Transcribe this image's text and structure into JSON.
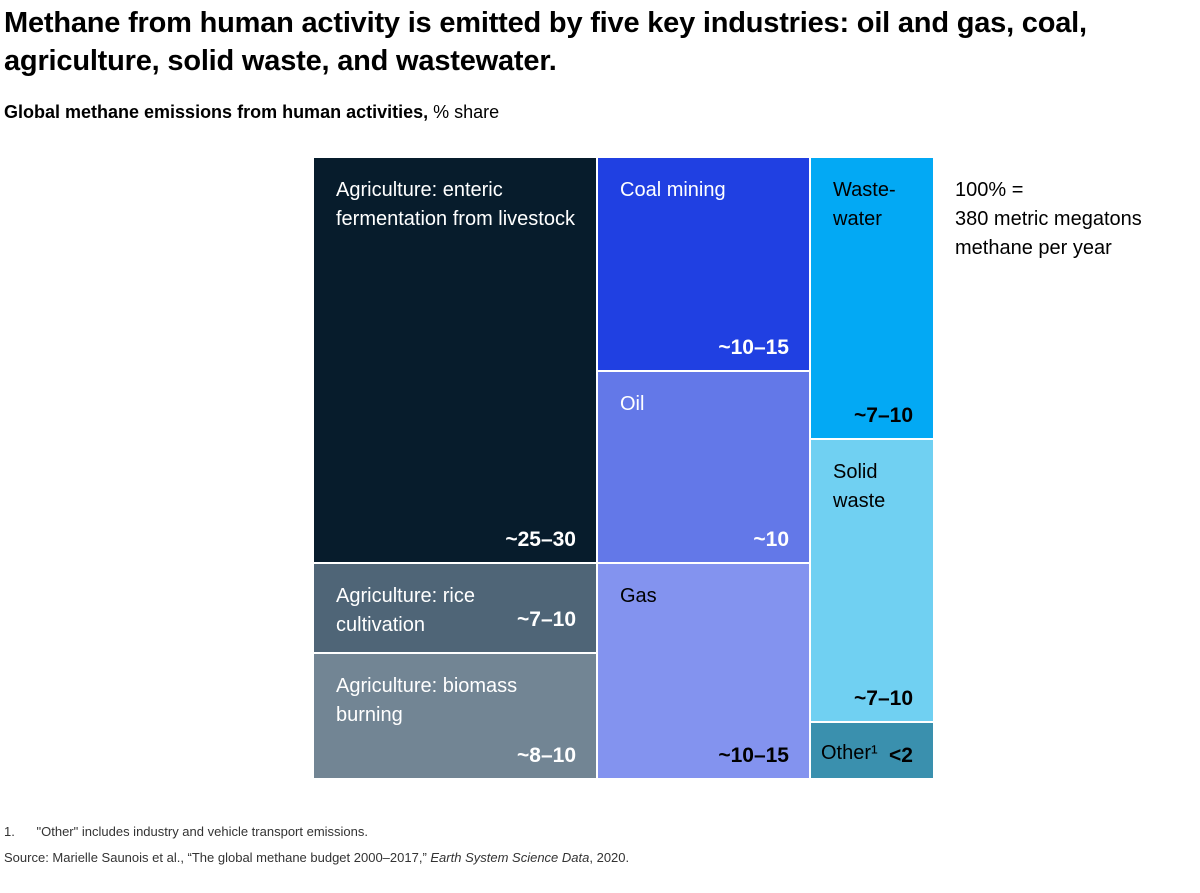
{
  "chart_data": {
    "type": "treemap",
    "title": "Methane from human activity is emitted by five key industries: oil and gas, coal, agriculture, solid waste, and wastewater.",
    "subtitle_bold": "Global methane emissions from human activities,",
    "subtitle_unit": " % share",
    "total_note": [
      "100% =",
      "380 metric megatons",
      "methane per year"
    ],
    "cells": [
      {
        "label": "Agriculture: enteric fermentation from livestock",
        "value": "~25–30",
        "color": "#071c2c",
        "text": "#fff"
      },
      {
        "label": "Agriculture: rice cultivation",
        "value": "~7–10",
        "color": "#4f6577",
        "text": "#fff"
      },
      {
        "label": "Agriculture: biomass burning",
        "value": "~8–10",
        "color": "#728594",
        "text": "#fff"
      },
      {
        "label": "Coal mining",
        "value": "~10–15",
        "color": "#2040e2",
        "text": "#fff"
      },
      {
        "label": "Oil",
        "value": "~10",
        "color": "#6378e8",
        "text": "#fff"
      },
      {
        "label": "Gas",
        "value": "~10–15",
        "color": "#8393ef",
        "text": "#000"
      },
      {
        "label": "Waste-water",
        "value": "~7–10",
        "color": "#03a9f4",
        "text": "#000"
      },
      {
        "label": "Solid waste",
        "value": "~7–10",
        "color": "#70d0f2",
        "text": "#000"
      },
      {
        "label": "Other¹",
        "value": "<2",
        "color": "#3a90ae",
        "text": "#000"
      }
    ]
  },
  "footnote": "1.      \"Other\" includes industry and vehicle transport emissions.",
  "source_pre": "Source: Marielle Saunois et al., “The global methane budget 2000–2017,” ",
  "source_it": "Earth System Science Data",
  "source_post": ", 2020."
}
